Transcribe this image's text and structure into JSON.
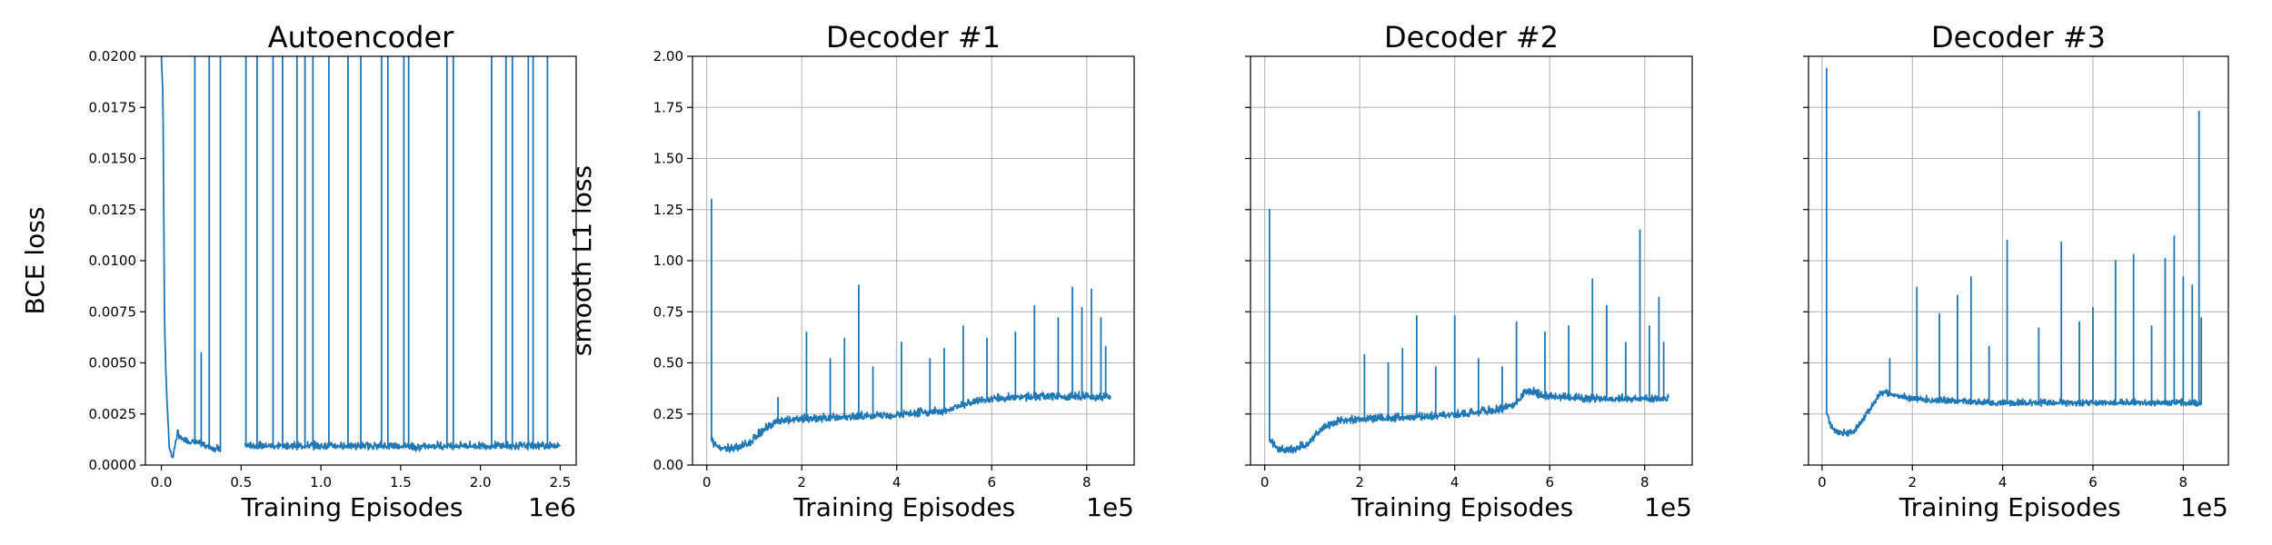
{
  "colors": {
    "series": "#1f77b4",
    "grid": "#b0b0b0"
  },
  "chart_data": [
    {
      "type": "line",
      "title": "Autoencoder",
      "xlabel": "Training Episodes",
      "ylabel": "BCE loss",
      "x_offset_label": "1e6",
      "xlim": [
        -0.1,
        2.6
      ],
      "ylim": [
        0,
        0.02
      ],
      "xticks": [
        0.0,
        0.5,
        1.0,
        1.5,
        2.0,
        2.5
      ],
      "xtick_labels": [
        "0.0",
        "0.5",
        "1.0",
        "1.5",
        "2.0",
        "2.5"
      ],
      "yticks": [
        0,
        0.0025,
        0.005,
        0.0075,
        0.01,
        0.0125,
        0.015,
        0.0175,
        0.02
      ],
      "ytick_labels": [
        "0.0000",
        "0.0025",
        "0.0050",
        "0.0075",
        "0.0100",
        "0.0125",
        "0.0150",
        "0.0175",
        "0.0200"
      ],
      "grid": false,
      "series": [
        {
          "x": [
            0.0,
            0.01,
            0.02,
            0.03,
            0.05,
            0.07,
            0.1,
            0.13,
            0.2,
            0.28,
            0.37,
            0.52,
            0.6,
            0.8,
            1.0,
            1.2,
            1.4,
            1.55,
            1.6,
            1.7,
            1.9,
            2.1,
            2.3,
            2.5
          ],
          "y": [
            0.02,
            0.018,
            0.007,
            0.004,
            0.0008,
            0.0003,
            0.0015,
            0.0012,
            0.0011,
            0.0009,
            0.0007,
            0.0009,
            0.0009,
            0.0009,
            0.0009,
            0.0009,
            0.0009,
            0.0009,
            0.0008,
            0.0009,
            0.0009,
            0.0009,
            0.0009,
            0.0009
          ],
          "noise_amplitude": 0.00045,
          "gaps": [
            [
              0.37,
              0.52
            ]
          ],
          "spikes": [
            {
              "x": 0.21,
              "y": 0.02
            },
            {
              "x": 0.25,
              "y": 0.0055
            },
            {
              "x": 0.3,
              "y": 0.02
            },
            {
              "x": 0.37,
              "y": 0.02
            },
            {
              "x": 0.53,
              "y": 0.02
            },
            {
              "x": 0.6,
              "y": 0.02
            },
            {
              "x": 0.7,
              "y": 0.02
            },
            {
              "x": 0.76,
              "y": 0.02
            },
            {
              "x": 0.85,
              "y": 0.02
            },
            {
              "x": 0.9,
              "y": 0.02
            },
            {
              "x": 0.95,
              "y": 0.02
            },
            {
              "x": 1.05,
              "y": 0.02
            },
            {
              "x": 1.17,
              "y": 0.02
            },
            {
              "x": 1.25,
              "y": 0.02
            },
            {
              "x": 1.38,
              "y": 0.02
            },
            {
              "x": 1.42,
              "y": 0.02
            },
            {
              "x": 1.52,
              "y": 0.02
            },
            {
              "x": 1.55,
              "y": 0.02
            },
            {
              "x": 1.79,
              "y": 0.02
            },
            {
              "x": 1.83,
              "y": 0.02
            },
            {
              "x": 2.07,
              "y": 0.02
            },
            {
              "x": 2.16,
              "y": 0.02
            },
            {
              "x": 2.2,
              "y": 0.02
            },
            {
              "x": 2.3,
              "y": 0.02
            },
            {
              "x": 2.33,
              "y": 0.02
            },
            {
              "x": 2.42,
              "y": 0.02
            }
          ]
        }
      ]
    },
    {
      "type": "line",
      "title": "Decoder #1",
      "xlabel": "Training Episodes",
      "ylabel": "smooth L1 loss",
      "x_offset_label": "1e5",
      "xlim": [
        -0.3,
        9.0
      ],
      "ylim": [
        0,
        2.0
      ],
      "xticks": [
        0,
        2,
        4,
        6,
        8
      ],
      "xtick_labels": [
        "0",
        "2",
        "4",
        "6",
        "8"
      ],
      "yticks": [
        0,
        0.25,
        0.5,
        0.75,
        1.0,
        1.25,
        1.5,
        1.75,
        2.0
      ],
      "ytick_labels": [
        "0.00",
        "0.25",
        "0.50",
        "0.75",
        "1.00",
        "1.25",
        "1.50",
        "1.75",
        "2.00"
      ],
      "grid": true,
      "series": [
        {
          "x": [
            0.1,
            0.15,
            0.3,
            0.6,
            0.9,
            1.2,
            1.5,
            2.0,
            3.0,
            4.0,
            5.0,
            5.5,
            6.0,
            7.0,
            8.0,
            8.5
          ],
          "y": [
            0.12,
            0.1,
            0.08,
            0.08,
            0.1,
            0.17,
            0.21,
            0.22,
            0.23,
            0.24,
            0.26,
            0.3,
            0.32,
            0.33,
            0.33,
            0.33
          ],
          "noise_amplitude": 0.05,
          "spikes": [
            {
              "x": 0.1,
              "y": 1.3
            },
            {
              "x": 1.5,
              "y": 0.33
            },
            {
              "x": 2.1,
              "y": 0.65
            },
            {
              "x": 2.6,
              "y": 0.52
            },
            {
              "x": 2.9,
              "y": 0.62
            },
            {
              "x": 3.2,
              "y": 0.88
            },
            {
              "x": 3.5,
              "y": 0.48
            },
            {
              "x": 4.1,
              "y": 0.6
            },
            {
              "x": 4.7,
              "y": 0.52
            },
            {
              "x": 5.0,
              "y": 0.57
            },
            {
              "x": 5.4,
              "y": 0.68
            },
            {
              "x": 5.9,
              "y": 0.62
            },
            {
              "x": 6.5,
              "y": 0.65
            },
            {
              "x": 6.9,
              "y": 0.78
            },
            {
              "x": 7.4,
              "y": 0.72
            },
            {
              "x": 7.7,
              "y": 0.87
            },
            {
              "x": 7.9,
              "y": 0.77
            },
            {
              "x": 8.1,
              "y": 0.86
            },
            {
              "x": 8.3,
              "y": 0.72
            },
            {
              "x": 8.4,
              "y": 0.58
            }
          ]
        }
      ]
    },
    {
      "type": "line",
      "title": "Decoder #2",
      "xlabel": "Training Episodes",
      "ylabel": "",
      "x_offset_label": "1e5",
      "xlim": [
        -0.3,
        9.0
      ],
      "ylim": [
        0,
        2.0
      ],
      "xticks": [
        0,
        2,
        4,
        6,
        8
      ],
      "xtick_labels": [
        "0",
        "2",
        "4",
        "6",
        "8"
      ],
      "yticks": [
        0,
        0.25,
        0.5,
        0.75,
        1.0,
        1.25,
        1.5,
        1.75,
        2.0
      ],
      "ytick_labels": [],
      "grid": true,
      "series": [
        {
          "x": [
            0.1,
            0.15,
            0.3,
            0.6,
            0.9,
            1.2,
            1.5,
            2.0,
            3.0,
            4.0,
            5.0,
            5.3,
            5.5,
            6.0,
            7.0,
            8.0,
            8.5
          ],
          "y": [
            0.12,
            0.1,
            0.07,
            0.07,
            0.1,
            0.17,
            0.21,
            0.22,
            0.23,
            0.24,
            0.27,
            0.3,
            0.36,
            0.33,
            0.32,
            0.32,
            0.32
          ],
          "noise_amplitude": 0.05,
          "spikes": [
            {
              "x": 0.1,
              "y": 1.25
            },
            {
              "x": 2.1,
              "y": 0.54
            },
            {
              "x": 2.6,
              "y": 0.5
            },
            {
              "x": 2.9,
              "y": 0.57
            },
            {
              "x": 3.2,
              "y": 0.73
            },
            {
              "x": 3.6,
              "y": 0.48
            },
            {
              "x": 4.0,
              "y": 0.73
            },
            {
              "x": 4.5,
              "y": 0.52
            },
            {
              "x": 5.0,
              "y": 0.48
            },
            {
              "x": 5.3,
              "y": 0.7
            },
            {
              "x": 5.9,
              "y": 0.65
            },
            {
              "x": 6.4,
              "y": 0.68
            },
            {
              "x": 6.9,
              "y": 0.91
            },
            {
              "x": 7.2,
              "y": 0.78
            },
            {
              "x": 7.6,
              "y": 0.6
            },
            {
              "x": 7.9,
              "y": 1.15
            },
            {
              "x": 8.1,
              "y": 0.68
            },
            {
              "x": 8.3,
              "y": 0.82
            },
            {
              "x": 8.4,
              "y": 0.6
            }
          ]
        }
      ]
    },
    {
      "type": "line",
      "title": "Decoder #3",
      "xlabel": "Training Episodes",
      "ylabel": "",
      "x_offset_label": "1e5",
      "xlim": [
        -0.3,
        9.0
      ],
      "ylim": [
        0,
        2.0
      ],
      "xticks": [
        0,
        2,
        4,
        6,
        8
      ],
      "xtick_labels": [
        "0",
        "2",
        "4",
        "6",
        "8"
      ],
      "yticks": [
        0,
        0.25,
        0.5,
        0.75,
        1.0,
        1.25,
        1.5,
        1.75,
        2.0
      ],
      "ytick_labels": [],
      "grid": true,
      "series": [
        {
          "x": [
            0.1,
            0.2,
            0.4,
            0.7,
            1.0,
            1.3,
            1.6,
            2.0,
            3.0,
            4.0,
            5.0,
            6.0,
            7.0,
            8.0,
            8.4
          ],
          "y": [
            0.25,
            0.18,
            0.15,
            0.16,
            0.25,
            0.35,
            0.34,
            0.32,
            0.31,
            0.3,
            0.3,
            0.3,
            0.3,
            0.3,
            0.3
          ],
          "noise_amplitude": 0.04,
          "spikes": [
            {
              "x": 0.1,
              "y": 1.94
            },
            {
              "x": 1.5,
              "y": 0.52
            },
            {
              "x": 2.1,
              "y": 0.87
            },
            {
              "x": 2.6,
              "y": 0.74
            },
            {
              "x": 3.0,
              "y": 0.83
            },
            {
              "x": 3.3,
              "y": 0.92
            },
            {
              "x": 3.7,
              "y": 0.58
            },
            {
              "x": 4.1,
              "y": 1.1
            },
            {
              "x": 4.8,
              "y": 0.67
            },
            {
              "x": 5.3,
              "y": 1.09
            },
            {
              "x": 5.7,
              "y": 0.7
            },
            {
              "x": 6.0,
              "y": 0.77
            },
            {
              "x": 6.5,
              "y": 1.0
            },
            {
              "x": 6.9,
              "y": 1.03
            },
            {
              "x": 7.3,
              "y": 0.68
            },
            {
              "x": 7.6,
              "y": 1.01
            },
            {
              "x": 7.8,
              "y": 1.12
            },
            {
              "x": 8.0,
              "y": 0.92
            },
            {
              "x": 8.2,
              "y": 0.88
            },
            {
              "x": 8.35,
              "y": 1.73
            },
            {
              "x": 8.4,
              "y": 0.72
            }
          ]
        }
      ]
    }
  ]
}
